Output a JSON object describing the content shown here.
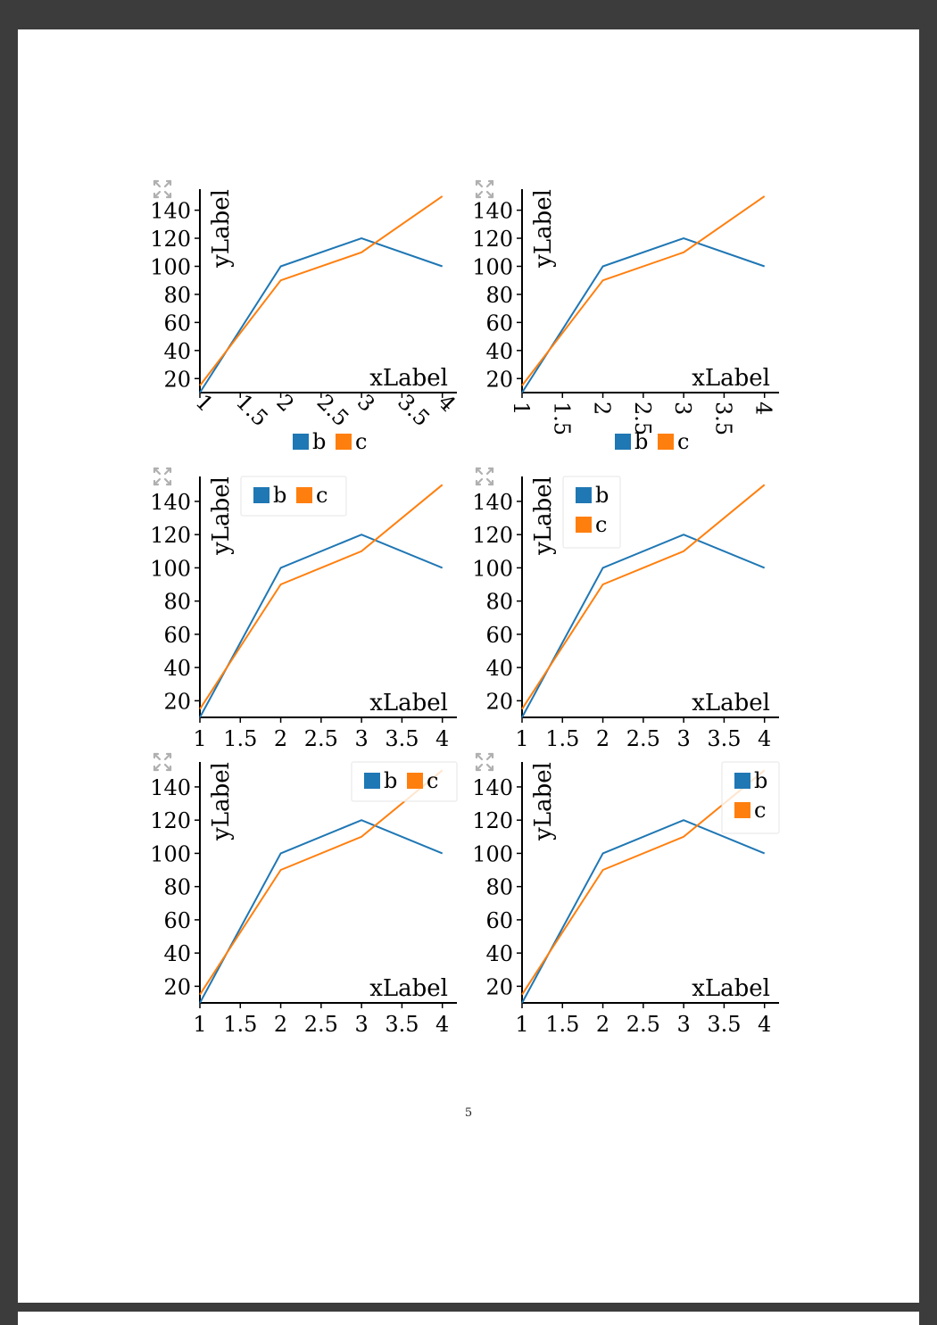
{
  "page": {
    "number": "5"
  },
  "colors": {
    "b": "#1f77b4",
    "c": "#ff7f0e"
  },
  "chart_data": [
    {
      "type": "line",
      "x": [
        1,
        2,
        3,
        4
      ],
      "series": [
        {
          "name": "b",
          "values": [
            10,
            100,
            120,
            100
          ]
        },
        {
          "name": "c",
          "values": [
            15,
            90,
            110,
            150
          ]
        }
      ],
      "xlabel": "xLabel",
      "ylabel": "yLabel",
      "xticks": [
        "1",
        "1.5",
        "2",
        "2.5",
        "3",
        "3.5",
        "4"
      ],
      "yticks": [
        "20",
        "40",
        "60",
        "80",
        "100",
        "120",
        "140"
      ],
      "xlim": [
        1,
        4.18
      ],
      "ylim": [
        10,
        155
      ],
      "xtick_rotation": "45deg",
      "legend": "below-horizontal",
      "grid": false
    },
    {
      "type": "line",
      "x": [
        1,
        2,
        3,
        4
      ],
      "series": [
        {
          "name": "b",
          "values": [
            10,
            100,
            120,
            100
          ]
        },
        {
          "name": "c",
          "values": [
            15,
            90,
            110,
            150
          ]
        }
      ],
      "xlabel": "xLabel",
      "ylabel": "yLabel",
      "xticks": [
        "1",
        "1.5",
        "2",
        "2.5",
        "3",
        "3.5",
        "4"
      ],
      "yticks": [
        "20",
        "40",
        "60",
        "80",
        "100",
        "120",
        "140"
      ],
      "xlim": [
        1,
        4.18
      ],
      "ylim": [
        10,
        155
      ],
      "xtick_rotation": "90deg",
      "legend": "below-horizontal",
      "grid": false
    },
    {
      "type": "line",
      "x": [
        1,
        2,
        3,
        4
      ],
      "series": [
        {
          "name": "b",
          "values": [
            10,
            100,
            120,
            100
          ]
        },
        {
          "name": "c",
          "values": [
            15,
            90,
            110,
            150
          ]
        }
      ],
      "xlabel": "xLabel",
      "ylabel": "yLabel",
      "xticks": [
        "1",
        "1.5",
        "2",
        "2.5",
        "3",
        "3.5",
        "4"
      ],
      "yticks": [
        "20",
        "40",
        "60",
        "80",
        "100",
        "120",
        "140"
      ],
      "xlim": [
        1,
        4.18
      ],
      "ylim": [
        10,
        155
      ],
      "xtick_rotation": "0deg",
      "legend": "top-left-horizontal",
      "grid": false
    },
    {
      "type": "line",
      "x": [
        1,
        2,
        3,
        4
      ],
      "series": [
        {
          "name": "b",
          "values": [
            10,
            100,
            120,
            100
          ]
        },
        {
          "name": "c",
          "values": [
            15,
            90,
            110,
            150
          ]
        }
      ],
      "xlabel": "xLabel",
      "ylabel": "yLabel",
      "xticks": [
        "1",
        "1.5",
        "2",
        "2.5",
        "3",
        "3.5",
        "4"
      ],
      "yticks": [
        "20",
        "40",
        "60",
        "80",
        "100",
        "120",
        "140"
      ],
      "xlim": [
        1,
        4.18
      ],
      "ylim": [
        10,
        155
      ],
      "xtick_rotation": "0deg",
      "legend": "top-left-vertical",
      "grid": false
    },
    {
      "type": "line",
      "x": [
        1,
        2,
        3,
        4
      ],
      "series": [
        {
          "name": "b",
          "values": [
            10,
            100,
            120,
            100
          ]
        },
        {
          "name": "c",
          "values": [
            15,
            90,
            110,
            150
          ]
        }
      ],
      "xlabel": "xLabel",
      "ylabel": "yLabel",
      "xticks": [
        "1",
        "1.5",
        "2",
        "2.5",
        "3",
        "3.5",
        "4"
      ],
      "yticks": [
        "20",
        "40",
        "60",
        "80",
        "100",
        "120",
        "140"
      ],
      "xlim": [
        1,
        4.18
      ],
      "ylim": [
        10,
        155
      ],
      "xtick_rotation": "0deg",
      "legend": "top-right-horizontal",
      "grid": false
    },
    {
      "type": "line",
      "x": [
        1,
        2,
        3,
        4
      ],
      "series": [
        {
          "name": "b",
          "values": [
            10,
            100,
            120,
            100
          ]
        },
        {
          "name": "c",
          "values": [
            15,
            90,
            110,
            150
          ]
        }
      ],
      "xlabel": "xLabel",
      "ylabel": "yLabel",
      "xticks": [
        "1",
        "1.5",
        "2",
        "2.5",
        "3",
        "3.5",
        "4"
      ],
      "yticks": [
        "20",
        "40",
        "60",
        "80",
        "100",
        "120",
        "140"
      ],
      "xlim": [
        1,
        4.18
      ],
      "ylim": [
        10,
        155
      ],
      "xtick_rotation": "0deg",
      "legend": "top-right-vertical",
      "grid": false
    }
  ]
}
